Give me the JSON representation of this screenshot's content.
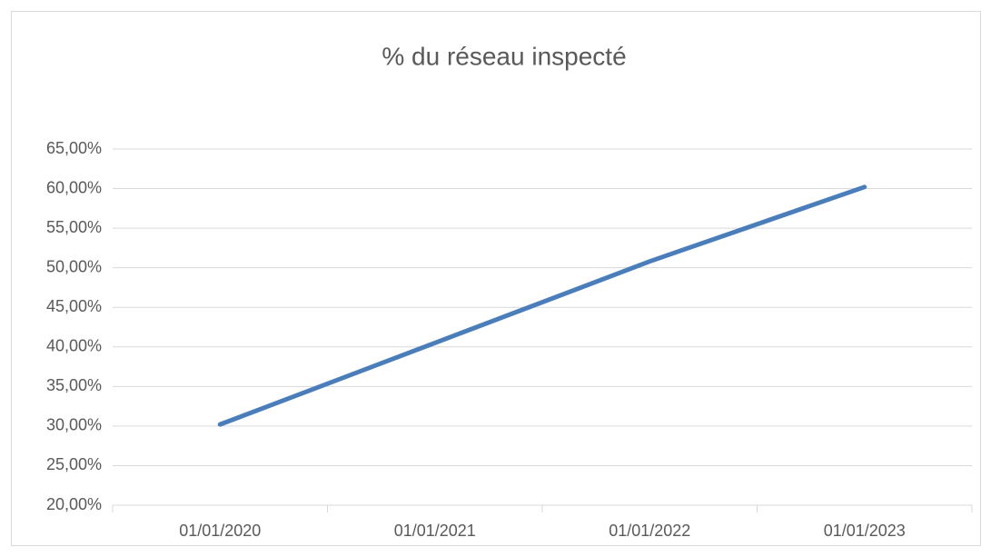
{
  "chart_data": {
    "type": "line",
    "title": "% du réseau inspecté",
    "categories": [
      "01/01/2020",
      "01/01/2021",
      "01/01/2022",
      "01/01/2023"
    ],
    "values": [
      30.2,
      40.5,
      50.8,
      60.2
    ],
    "color": "#4a7ebb",
    "ylim": [
      20,
      65
    ],
    "yticks": [
      {
        "value": 20,
        "label": "20,00%"
      },
      {
        "value": 25,
        "label": "25,00%"
      },
      {
        "value": 30,
        "label": "30,00%"
      },
      {
        "value": 35,
        "label": "35,00%"
      },
      {
        "value": 40,
        "label": "40,00%"
      },
      {
        "value": 45,
        "label": "45,00%"
      },
      {
        "value": 50,
        "label": "50,00%"
      },
      {
        "value": 55,
        "label": "55,00%"
      },
      {
        "value": 60,
        "label": "60,00%"
      },
      {
        "value": 65,
        "label": "65,00%"
      }
    ],
    "grid": true
  }
}
